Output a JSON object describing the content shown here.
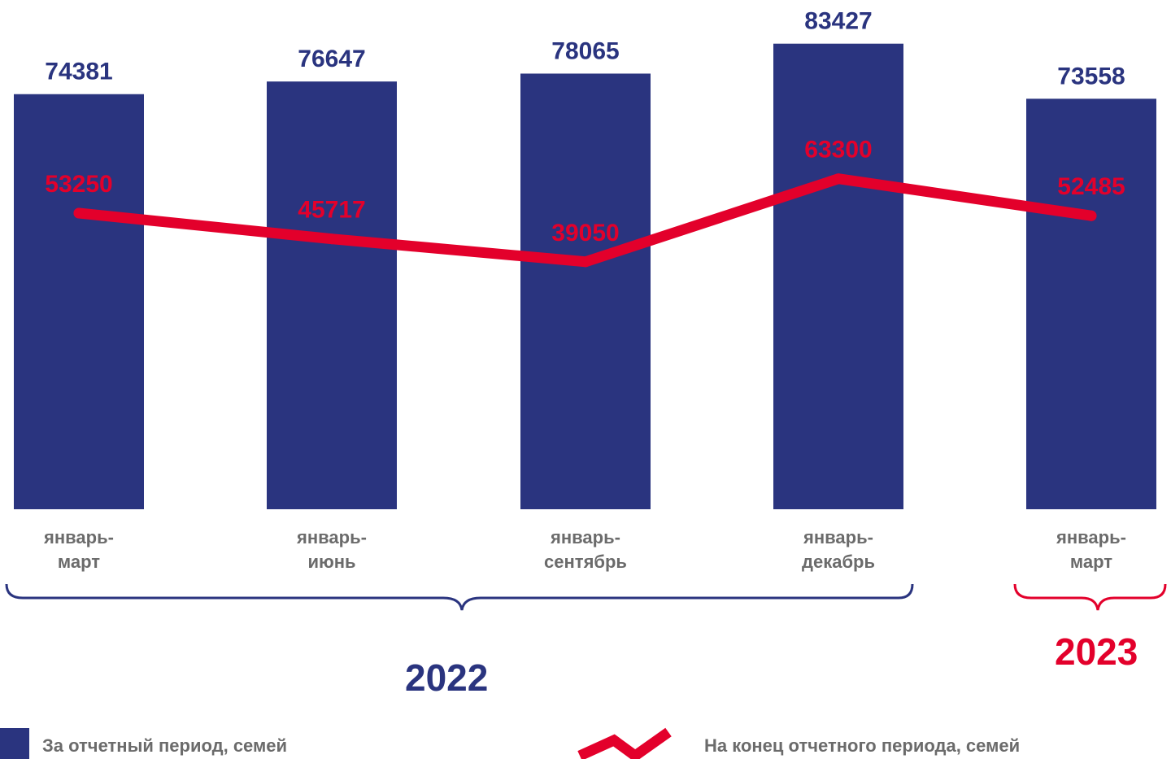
{
  "chart_data": {
    "type": "bar",
    "categories": [
      [
        "январь-",
        "март"
      ],
      [
        "январь-",
        "июнь"
      ],
      [
        "январь-",
        "сентябрь"
      ],
      [
        "январь-",
        "декабрь"
      ],
      [
        "январь-",
        "март"
      ]
    ],
    "series": [
      {
        "name": "За отчетный период, семей",
        "type": "bar",
        "values": [
          74381,
          76647,
          78065,
          83427,
          73558
        ]
      },
      {
        "name": "На конец отчетного периода, семей",
        "type": "line",
        "values": [
          53250,
          45717,
          39050,
          63300,
          52485
        ]
      }
    ],
    "groups": [
      {
        "label": "2022",
        "span": [
          0,
          3
        ]
      },
      {
        "label": "2023",
        "span": [
          4,
          4
        ]
      }
    ],
    "colors": {
      "bar": "#2a347f",
      "line": "#e3002b",
      "label": "#6b6b6b"
    }
  },
  "legend": {
    "bar_label": "За отчетный период, семей",
    "line_label": "На конец отчетного периода, семей"
  },
  "years": {
    "first": "2022",
    "second": "2023"
  }
}
